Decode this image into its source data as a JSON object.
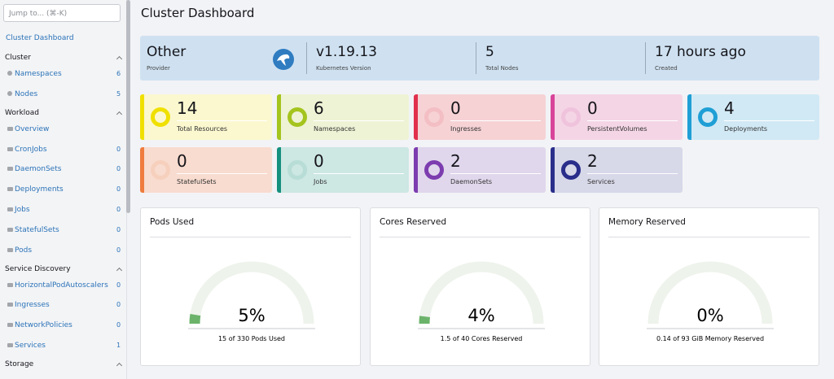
{
  "search": {
    "placeholder": "Jump to... (⌘-K)"
  },
  "sidebar": {
    "top_link": "Cluster Dashboard",
    "groups": [
      {
        "title": "Cluster",
        "items": [
          {
            "label": "Namespaces",
            "count": 6
          },
          {
            "label": "Nodes",
            "count": 5
          }
        ]
      },
      {
        "title": "Workload",
        "items": [
          {
            "label": "Overview"
          },
          {
            "label": "CronJobs",
            "count": 0
          },
          {
            "label": "DaemonSets",
            "count": 0
          },
          {
            "label": "Deployments",
            "count": 0
          },
          {
            "label": "Jobs",
            "count": 0
          },
          {
            "label": "StatefulSets",
            "count": 0
          },
          {
            "label": "Pods",
            "count": 0
          }
        ]
      },
      {
        "title": "Service Discovery",
        "items": [
          {
            "label": "HorizontalPodAutoscalers",
            "count": 0
          },
          {
            "label": "Ingresses",
            "count": 0
          },
          {
            "label": "NetworkPolicies",
            "count": 0
          },
          {
            "label": "Services",
            "count": 1
          }
        ]
      },
      {
        "title": "Storage",
        "items": []
      }
    ]
  },
  "header": {
    "title": "Cluster Dashboard"
  },
  "summary": [
    {
      "value": "Other",
      "label": "Provider"
    },
    {
      "value": "v1.19.13",
      "label": "Kubernetes Version"
    },
    {
      "value": "5",
      "label": "Total Nodes"
    },
    {
      "value": "17 hours ago",
      "label": "Created"
    }
  ],
  "resources": [
    {
      "count": 14,
      "label": "Total Resources",
      "color": "#f0e000",
      "background": "#fbf8cf"
    },
    {
      "count": 6,
      "label": "Namespaces",
      "color": "#a4c41e",
      "background": "#eef3d5"
    },
    {
      "count": 0,
      "label": "Ingresses",
      "color": "#e0304c",
      "background": "#f6d2d5"
    },
    {
      "count": 0,
      "label": "PersistentVolumes",
      "color": "#d8449a",
      "background": "#f4d5e5"
    },
    {
      "count": 4,
      "label": "Deployments",
      "color": "#1f9fd5",
      "background": "#d1e9f5"
    },
    {
      "count": 0,
      "label": "StatefulSets",
      "color": "#ef7c3e",
      "background": "#f8dccf"
    },
    {
      "count": 0,
      "label": "Jobs",
      "color": "#15907e",
      "background": "#cde7e3"
    },
    {
      "count": 2,
      "label": "DaemonSets",
      "color": "#7c3daf",
      "background": "#e0d7ec"
    },
    {
      "count": 2,
      "label": "Services",
      "color": "#2a2e8a",
      "background": "#d7d8e8"
    }
  ],
  "gauges": [
    {
      "title": "Pods Used",
      "percent": 5,
      "percent_label": "5%",
      "caption": "15 of 330 Pods Used"
    },
    {
      "title": "Cores Reserved",
      "percent": 4,
      "percent_label": "4%",
      "caption": "1.5 of 40 Cores Reserved"
    },
    {
      "title": "Memory Reserved",
      "percent": 0,
      "percent_label": "0%",
      "caption": "0.14 of 93 GiB Memory Reserved"
    }
  ]
}
